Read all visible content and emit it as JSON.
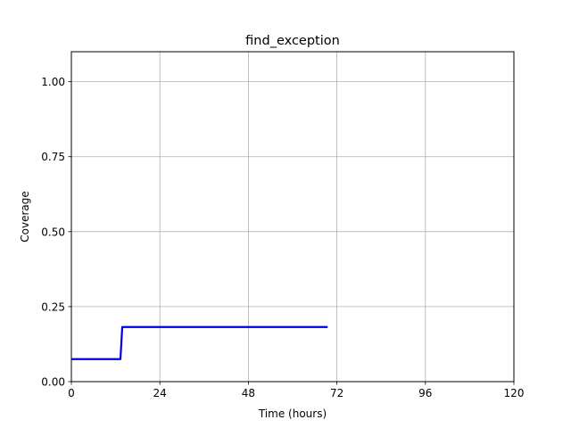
{
  "chart_data": {
    "type": "line",
    "title": "find_exception",
    "xlabel": "Time (hours)",
    "ylabel": "Coverage",
    "xlim": [
      0,
      120
    ],
    "ylim": [
      0,
      1.1
    ],
    "xticks": [
      0,
      24,
      48,
      72,
      96,
      120
    ],
    "xtick_labels": [
      "0",
      "24",
      "48",
      "72",
      "96",
      "120"
    ],
    "yticks": [
      0,
      0.25,
      0.5,
      0.75,
      1.0
    ],
    "ytick_labels": [
      "0.00",
      "0.25",
      "0.50",
      "0.75",
      "1.00"
    ],
    "grid": true,
    "series": [
      {
        "color": "#0000dd",
        "x": [
          0,
          13.3,
          13.8,
          69.5
        ],
        "y": [
          0.075,
          0.075,
          0.182,
          0.182
        ]
      }
    ]
  }
}
